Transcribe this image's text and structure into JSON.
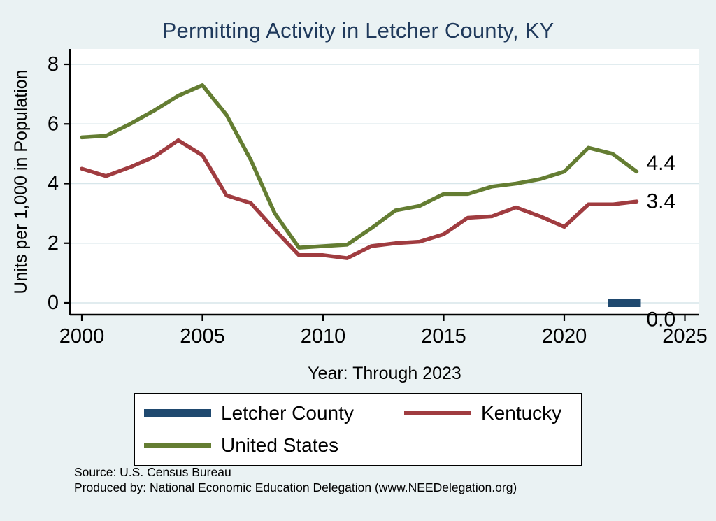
{
  "title": "Permitting Activity in Letcher County, KY",
  "colors": {
    "background": "#eaf2f3",
    "plot_background": "#ffffff",
    "gridline": "#d7e6ea",
    "axis": "#000000",
    "title_text": "#203a5c"
  },
  "chart_data": {
    "type": "line",
    "title": "Permitting Activity in Letcher County, KY",
    "xlabel": "Year: Through 2023",
    "ylabel": "Units per 1,000 in Population",
    "xlim": [
      2000,
      2025
    ],
    "ylim": [
      0,
      8
    ],
    "xticks": [
      2000,
      2005,
      2010,
      2015,
      2020,
      2025
    ],
    "yticks": [
      0,
      2,
      4,
      6,
      8
    ],
    "grid": "horizontal",
    "legend_position": "bottom",
    "x": [
      2000,
      2001,
      2002,
      2003,
      2004,
      2005,
      2006,
      2007,
      2008,
      2009,
      2010,
      2011,
      2012,
      2013,
      2014,
      2015,
      2016,
      2017,
      2018,
      2019,
      2020,
      2021,
      2022,
      2023
    ],
    "series": [
      {
        "name": "Letcher County",
        "color": "#1f496f",
        "stroke_width": 12,
        "values": [
          null,
          null,
          null,
          null,
          null,
          null,
          null,
          null,
          null,
          null,
          null,
          null,
          null,
          null,
          null,
          null,
          null,
          null,
          null,
          null,
          null,
          null,
          0.0,
          0.0
        ]
      },
      {
        "name": "Kentucky",
        "color": "#a03c40",
        "stroke_width": 5.5,
        "values": [
          4.5,
          4.25,
          4.55,
          4.9,
          5.45,
          4.95,
          3.6,
          3.35,
          2.45,
          1.6,
          1.6,
          1.5,
          1.9,
          2.0,
          2.05,
          2.3,
          2.85,
          2.9,
          3.2,
          2.9,
          2.55,
          3.3,
          3.3,
          3.4
        ]
      },
      {
        "name": "United States",
        "color": "#647d32",
        "stroke_width": 5.5,
        "values": [
          5.55,
          5.6,
          6.0,
          6.45,
          6.95,
          7.3,
          6.3,
          4.8,
          3.0,
          1.85,
          1.9,
          1.95,
          2.5,
          3.1,
          3.25,
          3.65,
          3.65,
          3.9,
          4.0,
          4.15,
          4.4,
          5.2,
          5.0,
          4.4
        ]
      }
    ],
    "end_labels": [
      {
        "text": "4.4",
        "value": 4.4,
        "dy": -12
      },
      {
        "text": "3.4",
        "value": 3.4,
        "dy": 0
      },
      {
        "text": "0.0",
        "value": 0.0,
        "dy": 24
      }
    ]
  },
  "source": {
    "line1": "Source: U.S. Census Bureau",
    "line2": "Produced by: National Economic Education Delegation (www.NEEDelegation.org)"
  }
}
